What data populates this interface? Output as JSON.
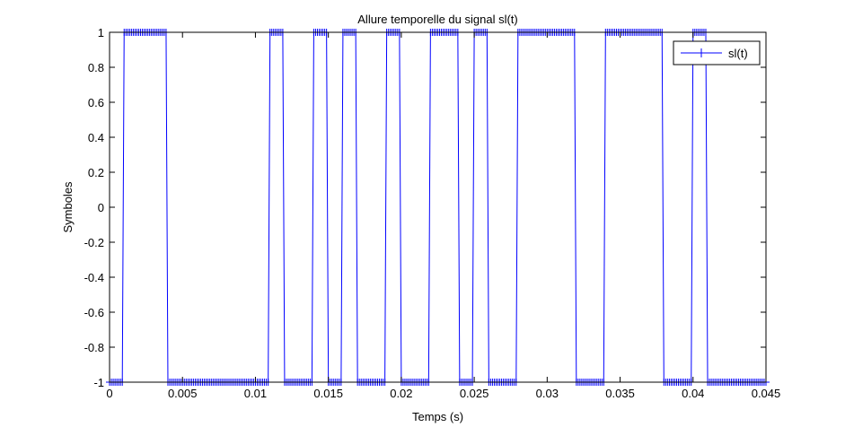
{
  "chart_data": {
    "type": "line",
    "title": "Allure temporelle du signal sl(t)",
    "xlabel": "Temps (s)",
    "ylabel": "Symboles",
    "xlim": [
      0,
      0.045
    ],
    "ylim": [
      -1,
      1
    ],
    "xticks": [
      0,
      0.005,
      0.01,
      0.015,
      0.02,
      0.025,
      0.03,
      0.035,
      0.04,
      0.045
    ],
    "xtick_labels": [
      "0",
      "0.005",
      "0.01",
      "0.015",
      "0.02",
      "0.025",
      "0.03",
      "0.035",
      "0.04",
      "0.045"
    ],
    "yticks": [
      -1,
      -0.8,
      -0.6,
      -0.4,
      -0.2,
      0,
      0.2,
      0.4,
      0.6,
      0.8,
      1
    ],
    "ytick_labels": [
      "-1",
      "-0.8",
      "-0.6",
      "-0.4",
      "-0.2",
      "0",
      "0.2",
      "0.4",
      "0.6",
      "0.8",
      "1"
    ],
    "grid": false,
    "legend_position": "top-right",
    "series": [
      {
        "name": "sl(t)",
        "color": "#0000ff",
        "marker": "plus",
        "samples_per_symbol": 8,
        "symbol_duration": 0.001,
        "symbols": [
          -1,
          1,
          1,
          1,
          -1,
          -1,
          -1,
          -1,
          -1,
          -1,
          -1,
          1,
          -1,
          -1,
          1,
          -1,
          1,
          -1,
          -1,
          1,
          -1,
          -1,
          1,
          1,
          -1,
          1,
          -1,
          -1,
          1,
          1,
          1,
          1,
          -1,
          -1,
          1,
          1,
          1,
          1,
          -1,
          -1,
          1,
          -1,
          -1,
          -1,
          -1
        ]
      }
    ]
  }
}
